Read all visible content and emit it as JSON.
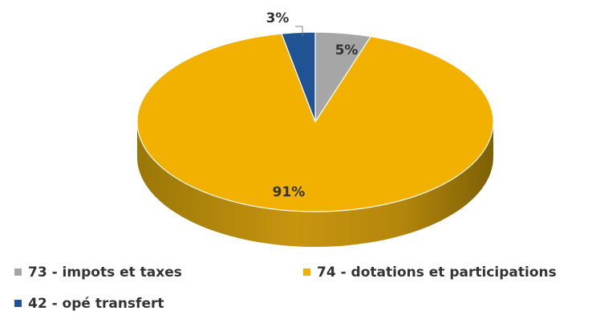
{
  "chart_data": {
    "type": "pie",
    "style": "3d",
    "title": "",
    "slices": [
      {
        "label": "73 - impots et taxes",
        "value": 5,
        "display": "5%",
        "color": "#a6a6a6"
      },
      {
        "label": "74 - dotations et participations",
        "value": 91,
        "display": "91%",
        "color": "#f2b100"
      },
      {
        "label": "42 - opé transfert",
        "value": 3,
        "display": "3%",
        "color": "#1f5393"
      }
    ],
    "legend_position": "bottom"
  }
}
